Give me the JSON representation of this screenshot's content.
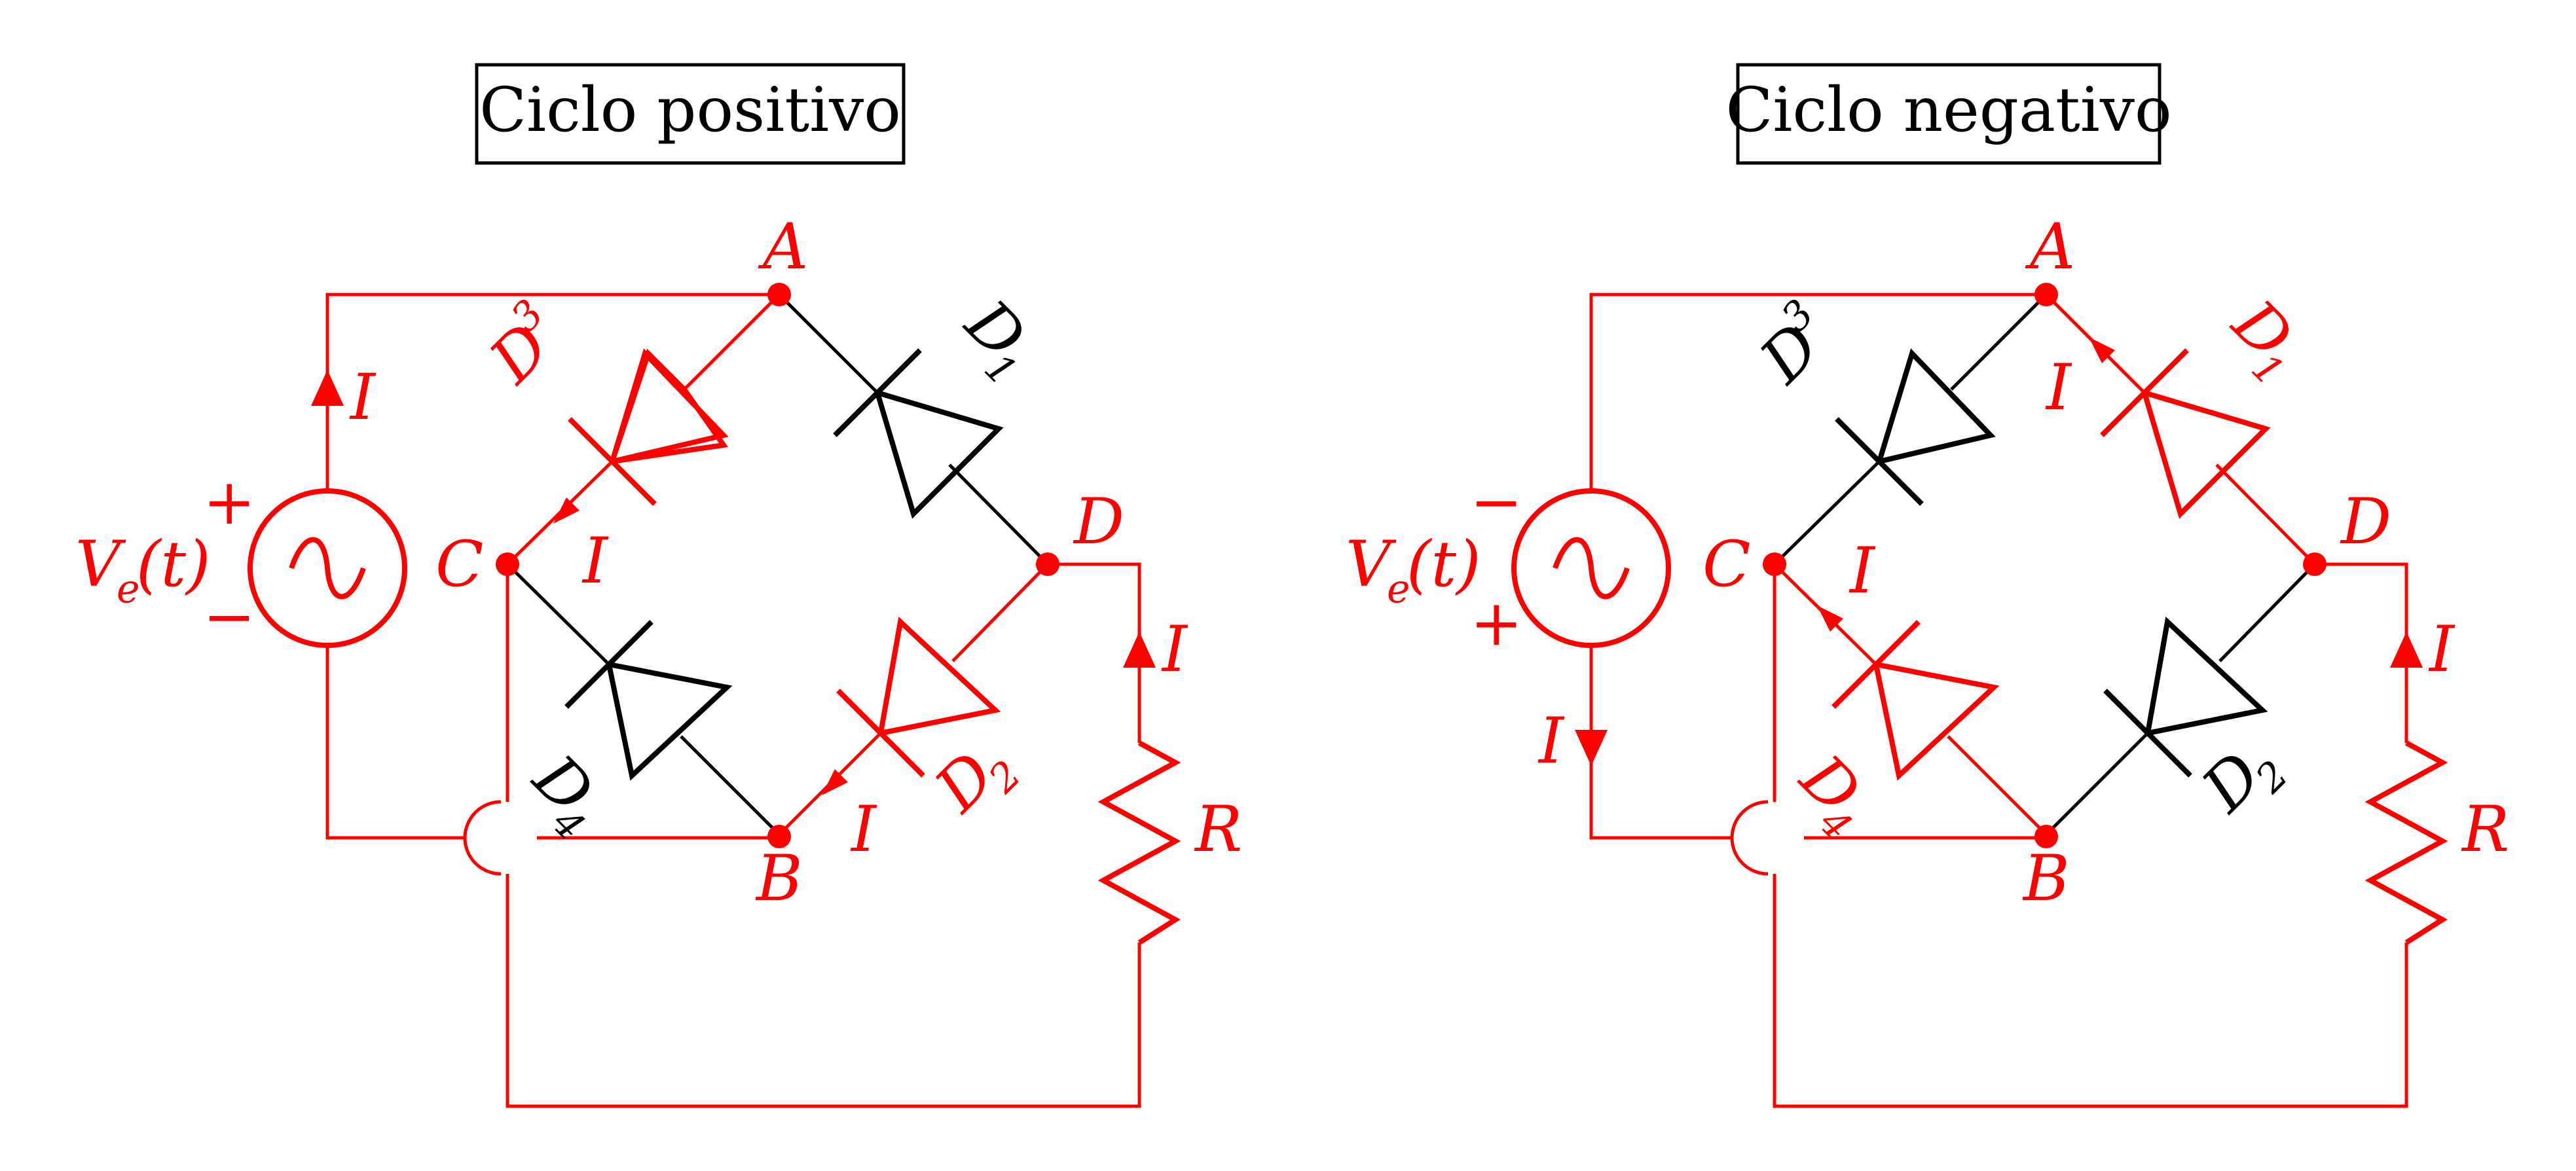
{
  "colors": {
    "active": "#ff0000",
    "inactive": "#000000",
    "background": "#ffffff"
  },
  "panels": [
    {
      "title": "Ciclo positivo",
      "source_label": "V",
      "source_label_sub": "e",
      "source_label_arg": "(t)",
      "source_polarity_top": "+",
      "source_polarity_bottom": "−",
      "node_labels": {
        "A": "A",
        "B": "B",
        "C": "C",
        "D": "D"
      },
      "diodes": {
        "D1": {
          "label": "D",
          "sub": "1",
          "state": "off"
        },
        "D2": {
          "label": "D",
          "sub": "2",
          "state": "on"
        },
        "D3": {
          "label": "D",
          "sub": "3",
          "state": "on"
        },
        "D4": {
          "label": "D",
          "sub": "4",
          "state": "off"
        }
      },
      "current_label": "I",
      "resistor_label": "R"
    },
    {
      "title": "Ciclo negativo",
      "source_label": "V",
      "source_label_sub": "e",
      "source_label_arg": "(t)",
      "source_polarity_top": "−",
      "source_polarity_bottom": "+",
      "node_labels": {
        "A": "A",
        "B": "B",
        "C": "C",
        "D": "D"
      },
      "diodes": {
        "D1": {
          "label": "D",
          "sub": "1",
          "state": "on"
        },
        "D2": {
          "label": "D",
          "sub": "2",
          "state": "off"
        },
        "D3": {
          "label": "D",
          "sub": "3",
          "state": "off"
        },
        "D4": {
          "label": "D",
          "sub": "4",
          "state": "on"
        }
      },
      "current_label": "I",
      "resistor_label": "R"
    }
  ]
}
